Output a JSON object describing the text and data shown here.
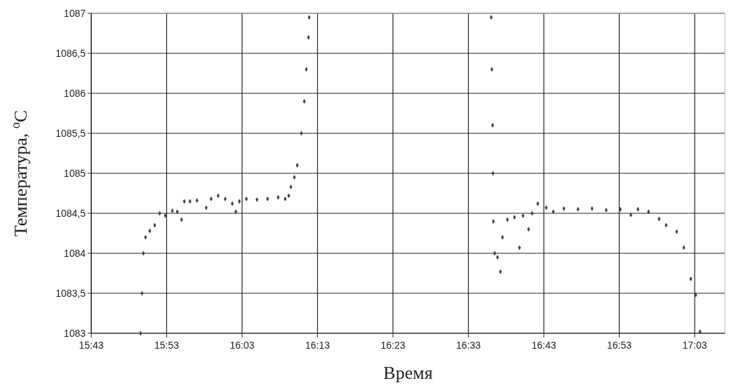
{
  "chart_data": {
    "type": "scatter",
    "xlabel": "Время",
    "ylabel": "Температура, $^{o}$C",
    "marker": "diamond",
    "grid": true,
    "xlim": [
      15.7167,
      17.1167
    ],
    "xticks": [
      {
        "value": 15.7167,
        "label": "15:43"
      },
      {
        "value": 15.8833,
        "label": "15:53"
      },
      {
        "value": 16.05,
        "label": "16:03"
      },
      {
        "value": 16.2167,
        "label": "16:13"
      },
      {
        "value": 16.3833,
        "label": "16:23"
      },
      {
        "value": 16.55,
        "label": "16:33"
      },
      {
        "value": 16.7167,
        "label": "16:43"
      },
      {
        "value": 16.8833,
        "label": "16:53"
      },
      {
        "value": 17.05,
        "label": "17:03"
      }
    ],
    "ylim": [
      1083,
      1087
    ],
    "yticks": [
      1083,
      {
        "value": 1083.5,
        "label": "1083,5"
      },
      1084,
      {
        "value": 1084.5,
        "label": "1084,5"
      },
      1085,
      {
        "value": 1085.5,
        "label": "1085,5"
      },
      1086,
      {
        "value": 1086.5,
        "label": "1086,5"
      },
      1087
    ],
    "series": [
      {
        "color": "#404040",
        "x": [
          15.8258,
          15.8289,
          15.832,
          15.8367,
          15.846,
          15.857,
          15.8679,
          15.8803,
          15.8959,
          15.9068,
          15.9162,
          15.9224,
          15.9349,
          15.9505,
          15.9707,
          15.9816,
          15.9972,
          16.0128,
          16.0284,
          16.0362,
          16.044,
          16.0595,
          16.0829,
          16.1063,
          16.1297,
          16.1453,
          16.1531,
          16.1578,
          16.1655,
          16.1718,
          16.1811,
          16.1874,
          16.192,
          16.1967,
          16.1983
        ],
        "values": [
          1083,
          1083.5,
          1084,
          1084.2,
          1084.28,
          1084.35,
          1084.5,
          1084.47,
          1084.53,
          1084.52,
          1084.42,
          1084.65,
          1084.65,
          1084.66,
          1084.57,
          1084.68,
          1084.72,
          1084.68,
          1084.62,
          1084.52,
          1084.65,
          1084.68,
          1084.67,
          1084.68,
          1084.7,
          1084.68,
          1084.72,
          1084.83,
          1084.95,
          1085.1,
          1085.5,
          1085.9,
          1086.3,
          1086.7,
          1086.95
        ]
      },
      {
        "color": "#404040",
        "x": [
          16.6004,
          16.6019,
          16.6035,
          16.6043,
          16.6051,
          16.6082,
          16.6144,
          16.6207,
          16.6254,
          16.6363,
          16.6519,
          16.6628,
          16.6706,
          16.683,
          16.6908,
          16.7033,
          16.722,
          16.7376,
          16.761,
          16.7922,
          16.8233,
          16.8545,
          16.8857,
          16.909,
          16.9246,
          16.948,
          16.9714,
          16.987,
          17.0103,
          17.0259,
          17.0415,
          17.0524,
          17.0618
        ],
        "values": [
          1086.95,
          1086.3,
          1085.6,
          1085,
          1084.4,
          1084,
          1083.95,
          1083.77,
          1084.2,
          1084.42,
          1084.45,
          1084.07,
          1084.47,
          1084.3,
          1084.5,
          1084.62,
          1084.57,
          1084.52,
          1084.56,
          1084.55,
          1084.56,
          1084.54,
          1084.55,
          1084.48,
          1084.55,
          1084.52,
          1084.43,
          1084.35,
          1084.27,
          1084.07,
          1083.68,
          1083.48,
          1083.02
        ]
      }
    ]
  }
}
